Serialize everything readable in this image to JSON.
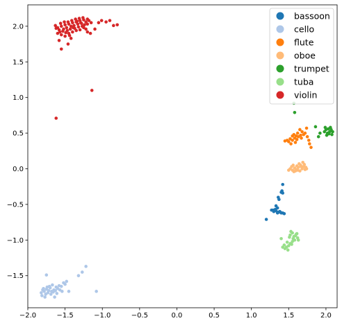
{
  "chart_data": {
    "type": "scatter",
    "title": "",
    "xlabel": "",
    "ylabel": "",
    "xlim": [
      -2.0,
      2.15
    ],
    "ylim": [
      -1.95,
      2.3
    ],
    "xticks": [
      -2.0,
      -1.5,
      -1.0,
      -0.5,
      0.0,
      0.5,
      1.0,
      1.5,
      2.0
    ],
    "xtick_labels": [
      "−2.0",
      "−1.5",
      "−1.0",
      "−0.5",
      "0.0",
      "0.5",
      "1.0",
      "1.5",
      "2.0"
    ],
    "yticks": [
      -1.5,
      -1.0,
      -0.5,
      0.0,
      0.5,
      1.0,
      1.5,
      2.0
    ],
    "ytick_labels": [
      "−1.5",
      "−1.0",
      "−0.5",
      "0.0",
      "0.5",
      "1.0",
      "1.5",
      "2.0"
    ],
    "grid": false,
    "legend_position": "top-right",
    "series": [
      {
        "name": "bassoon",
        "color": "#1f77b4",
        "points": [
          [
            1.42,
            -0.22
          ],
          [
            1.41,
            -0.31
          ],
          [
            1.42,
            -0.34
          ],
          [
            1.4,
            -0.33
          ],
          [
            1.36,
            -0.4
          ],
          [
            1.37,
            -0.43
          ],
          [
            1.33,
            -0.52
          ],
          [
            1.35,
            -0.55
          ],
          [
            1.32,
            -0.57
          ],
          [
            1.29,
            -0.58
          ],
          [
            1.3,
            -0.6
          ],
          [
            1.33,
            -0.59
          ],
          [
            1.36,
            -0.61
          ],
          [
            1.38,
            -0.6
          ],
          [
            1.4,
            -0.62
          ],
          [
            1.42,
            -0.62
          ],
          [
            1.44,
            -0.63
          ],
          [
            1.35,
            -0.62
          ],
          [
            1.31,
            -0.59
          ],
          [
            1.27,
            -0.58
          ],
          [
            1.39,
            -0.61
          ],
          [
            1.2,
            -0.71
          ]
        ]
      },
      {
        "name": "cello",
        "color": "#aec7e8",
        "points": [
          [
            -1.8,
            -1.7
          ],
          [
            -1.78,
            -1.72
          ],
          [
            -1.82,
            -1.74
          ],
          [
            -1.75,
            -1.69
          ],
          [
            -1.72,
            -1.71
          ],
          [
            -1.7,
            -1.67
          ],
          [
            -1.68,
            -1.72
          ],
          [
            -1.65,
            -1.7
          ],
          [
            -1.62,
            -1.66
          ],
          [
            -1.6,
            -1.68
          ],
          [
            -1.58,
            -1.64
          ],
          [
            -1.55,
            -1.65
          ],
          [
            -1.52,
            -1.6
          ],
          [
            -1.5,
            -1.62
          ],
          [
            -1.48,
            -1.58
          ],
          [
            -1.76,
            -1.76
          ],
          [
            -1.79,
            -1.68
          ],
          [
            -1.73,
            -1.74
          ],
          [
            -1.69,
            -1.76
          ],
          [
            -1.66,
            -1.73
          ],
          [
            -1.63,
            -1.71
          ],
          [
            -1.61,
            -1.75
          ],
          [
            -1.71,
            -1.65
          ],
          [
            -1.67,
            -1.63
          ],
          [
            -1.74,
            -1.66
          ],
          [
            -1.81,
            -1.78
          ],
          [
            -1.64,
            -1.8
          ],
          [
            -1.57,
            -1.7
          ],
          [
            -1.54,
            -1.72
          ],
          [
            -1.77,
            -1.8
          ],
          [
            -1.75,
            -1.49
          ],
          [
            -1.45,
            -1.72
          ],
          [
            -1.32,
            -1.5
          ],
          [
            -1.27,
            -1.45
          ],
          [
            -1.22,
            -1.37
          ],
          [
            -1.08,
            -1.72
          ]
        ]
      },
      {
        "name": "flute",
        "color": "#ff7f0e",
        "points": [
          [
            1.65,
            0.55
          ],
          [
            1.62,
            0.5
          ],
          [
            1.68,
            0.52
          ],
          [
            1.7,
            0.48
          ],
          [
            1.6,
            0.46
          ],
          [
            1.58,
            0.43
          ],
          [
            1.55,
            0.4
          ],
          [
            1.52,
            0.42
          ],
          [
            1.5,
            0.38
          ],
          [
            1.48,
            0.4
          ],
          [
            1.45,
            0.39
          ],
          [
            1.63,
            0.45
          ],
          [
            1.66,
            0.47
          ],
          [
            1.72,
            0.5
          ],
          [
            1.75,
            0.45
          ],
          [
            1.77,
            0.4
          ],
          [
            1.78,
            0.35
          ],
          [
            1.8,
            0.3
          ],
          [
            1.57,
            0.48
          ],
          [
            1.53,
            0.35
          ],
          [
            1.59,
            0.37
          ],
          [
            1.74,
            0.57
          ],
          [
            1.55,
            0.46
          ],
          [
            1.61,
            0.41
          ],
          [
            1.67,
            0.43
          ]
        ]
      },
      {
        "name": "oboe",
        "color": "#ffbb78",
        "points": [
          [
            1.52,
            0.0
          ],
          [
            1.55,
            -0.02
          ],
          [
            1.58,
            0.01
          ],
          [
            1.6,
            -0.01
          ],
          [
            1.63,
            0.02
          ],
          [
            1.65,
            -0.03
          ],
          [
            1.68,
            0.0
          ],
          [
            1.7,
            0.03
          ],
          [
            1.72,
            -0.01
          ],
          [
            1.57,
            -0.04
          ],
          [
            1.62,
            -0.02
          ],
          [
            1.66,
            0.05
          ],
          [
            1.69,
            0.09
          ],
          [
            1.73,
            0.02
          ],
          [
            1.5,
            -0.02
          ],
          [
            1.54,
            0.03
          ],
          [
            1.59,
            -0.03
          ],
          [
            1.64,
            0.07
          ],
          [
            1.71,
            0.06
          ],
          [
            1.61,
            0.04
          ],
          [
            1.67,
            0.03
          ],
          [
            1.74,
            0.0
          ],
          [
            1.56,
            0.05
          ]
        ]
      },
      {
        "name": "trumpet",
        "color": "#2ca02c",
        "points": [
          [
            2.0,
            0.55
          ],
          [
            2.02,
            0.5
          ],
          [
            2.05,
            0.52
          ],
          [
            2.08,
            0.48
          ],
          [
            2.03,
            0.56
          ],
          [
            2.06,
            0.58
          ],
          [
            1.98,
            0.52
          ],
          [
            2.01,
            0.47
          ],
          [
            2.07,
            0.55
          ],
          [
            2.04,
            0.49
          ],
          [
            1.9,
            0.45
          ],
          [
            1.92,
            0.5
          ],
          [
            1.86,
            0.59
          ],
          [
            1.58,
            0.79
          ],
          [
            1.57,
            0.92
          ],
          [
            2.09,
            0.52
          ],
          [
            1.99,
            0.58
          ]
        ]
      },
      {
        "name": "tuba",
        "color": "#98df8a",
        "points": [
          [
            1.55,
            -0.9
          ],
          [
            1.57,
            -0.95
          ],
          [
            1.6,
            -0.92
          ],
          [
            1.62,
            -0.97
          ],
          [
            1.58,
            -1.0
          ],
          [
            1.55,
            -1.02
          ],
          [
            1.52,
            -1.05
          ],
          [
            1.5,
            -1.08
          ],
          [
            1.47,
            -1.1
          ],
          [
            1.45,
            -1.12
          ],
          [
            1.53,
            -0.88
          ],
          [
            1.59,
            -0.94
          ],
          [
            1.63,
            -1.0
          ],
          [
            1.56,
            -0.98
          ],
          [
            1.54,
            -1.06
          ],
          [
            1.49,
            -1.14
          ],
          [
            1.51,
            -0.96
          ],
          [
            1.61,
            -0.91
          ],
          [
            1.48,
            -1.03
          ],
          [
            1.44,
            -1.07
          ],
          [
            1.52,
            -0.93
          ],
          [
            1.42,
            -1.1
          ],
          [
            1.4,
            -0.98
          ]
        ]
      },
      {
        "name": "violin",
        "color": "#d62728",
        "points": [
          [
            -1.6,
            1.98
          ],
          [
            -1.55,
            2.0
          ],
          [
            -1.5,
            2.02
          ],
          [
            -1.45,
            2.03
          ],
          [
            -1.4,
            2.05
          ],
          [
            -1.35,
            2.06
          ],
          [
            -1.3,
            2.08
          ],
          [
            -1.25,
            2.09
          ],
          [
            -1.2,
            2.1
          ],
          [
            -1.58,
            1.95
          ],
          [
            -1.52,
            1.96
          ],
          [
            -1.48,
            1.98
          ],
          [
            -1.42,
            2.0
          ],
          [
            -1.38,
            2.01
          ],
          [
            -1.33,
            2.03
          ],
          [
            -1.28,
            2.04
          ],
          [
            -1.22,
            2.06
          ],
          [
            -1.62,
            1.97
          ],
          [
            -1.57,
            1.92
          ],
          [
            -1.47,
            1.94
          ],
          [
            -1.43,
            1.96
          ],
          [
            -1.37,
            1.97
          ],
          [
            -1.32,
            1.99
          ],
          [
            -1.27,
            2.0
          ],
          [
            -1.6,
            1.9
          ],
          [
            -1.55,
            1.88
          ],
          [
            -1.5,
            1.86
          ],
          [
            -1.45,
            1.9
          ],
          [
            -1.4,
            1.92
          ],
          [
            -1.35,
            1.94
          ],
          [
            -1.53,
            1.93
          ],
          [
            -1.46,
            2.06
          ],
          [
            -1.41,
            2.08
          ],
          [
            -1.36,
            2.1
          ],
          [
            -1.31,
            2.11
          ],
          [
            -1.26,
            2.12
          ],
          [
            -1.18,
            2.08
          ],
          [
            -1.15,
            2.05
          ],
          [
            -1.2,
            2.03
          ],
          [
            -1.25,
            1.98
          ],
          [
            -1.3,
            1.95
          ],
          [
            -1.63,
            2.01
          ],
          [
            -1.56,
            2.04
          ],
          [
            -1.51,
            2.06
          ],
          [
            -1.49,
            1.91
          ],
          [
            -1.44,
            1.87
          ],
          [
            -1.39,
            1.98
          ],
          [
            -1.34,
            2.07
          ],
          [
            -1.29,
            2.05
          ],
          [
            -1.24,
            2.02
          ],
          [
            -1.22,
            1.96
          ],
          [
            -1.16,
            1.9
          ],
          [
            -1.58,
            1.8
          ],
          [
            -1.55,
            1.68
          ],
          [
            -1.46,
            1.75
          ],
          [
            -1.42,
            1.83
          ],
          [
            -1.05,
            2.05
          ],
          [
            -1.01,
            2.08
          ],
          [
            -0.95,
            2.06
          ],
          [
            -0.9,
            2.08
          ],
          [
            -0.85,
            2.01
          ],
          [
            -0.8,
            2.02
          ],
          [
            -1.1,
            1.96
          ],
          [
            -1.2,
            1.92
          ],
          [
            -1.14,
            1.1
          ],
          [
            -1.62,
            0.71
          ]
        ]
      }
    ]
  }
}
